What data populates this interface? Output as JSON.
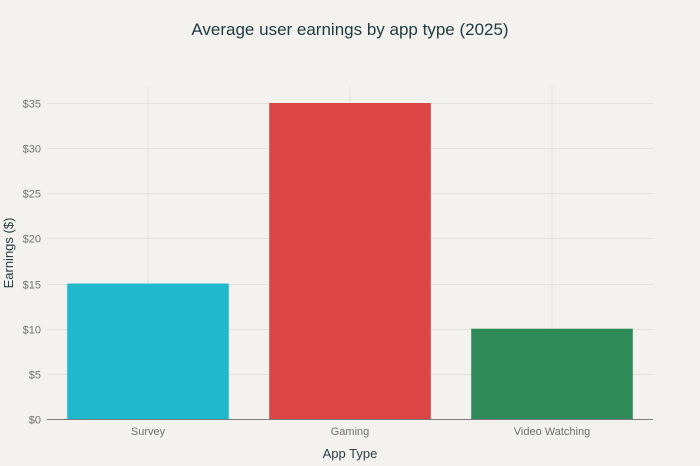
{
  "chart_data": {
    "type": "bar",
    "title": "Average user earnings by app type (2025)",
    "xlabel": "App Type",
    "ylabel": "Earnings ($)",
    "categories": [
      "Survey",
      "Gaming",
      "Video Watching"
    ],
    "values": [
      15,
      35,
      10
    ],
    "colors": [
      "#1FB8CD",
      "#DB4545",
      "#2E8B57"
    ],
    "ylim": [
      0,
      35
    ],
    "yticks": [
      0,
      5,
      10,
      15,
      20,
      25,
      30,
      35
    ],
    "ytick_labels": [
      "$0",
      "$5",
      "$10",
      "$15",
      "$20",
      "$25",
      "$30",
      "$35"
    ],
    "grid": true,
    "legend": "none"
  }
}
